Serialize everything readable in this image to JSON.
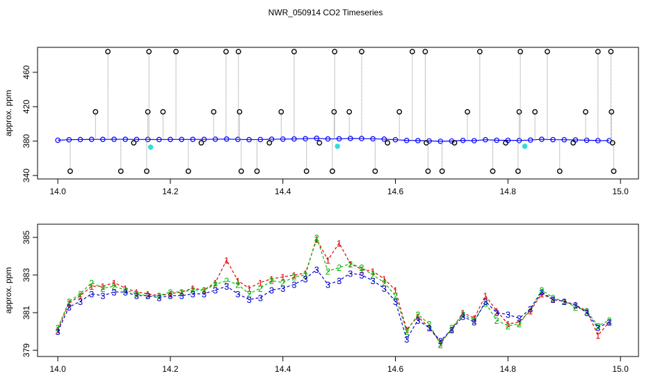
{
  "title": "NWR_050914  CO2 Timeseries",
  "chart_data": [
    {
      "type": "line",
      "y_label": "approx. ppm",
      "xlim": [
        13.964,
        15.032
      ],
      "ylim": [
        336,
        489
      ],
      "xticks": [
        {
          "value": 14,
          "label": "14.0"
        },
        14.2,
        14.4,
        14.6,
        14.8,
        {
          "value": 15,
          "label": "15.0"
        }
      ],
      "yticks": [
        340,
        380,
        420,
        460
      ],
      "x": [
        14.0,
        14.02,
        14.04,
        14.06,
        14.08,
        14.1,
        14.12,
        14.14,
        14.16,
        14.18,
        14.2,
        14.22,
        14.24,
        14.26,
        14.28,
        14.3,
        14.32,
        14.34,
        14.36,
        14.38,
        14.4,
        14.42,
        14.44,
        14.46,
        14.48,
        14.5,
        14.52,
        14.54,
        14.56,
        14.58,
        14.6,
        14.62,
        14.64,
        14.66,
        14.68,
        14.7,
        14.72,
        14.74,
        14.76,
        14.78,
        14.8,
        14.82,
        14.84,
        14.86,
        14.88,
        14.9,
        14.92,
        14.94,
        14.96,
        14.98
      ],
      "series": [
        {
          "style": "points-line",
          "color": "#0000ff",
          "values": [
            381,
            381.6,
            381.8,
            382,
            382,
            382.1,
            382.1,
            381.9,
            381.9,
            381.8,
            381.9,
            381.9,
            382,
            382,
            382.2,
            382.4,
            382,
            381.7,
            381.8,
            382.2,
            382.3,
            382.5,
            382.8,
            383.3,
            382.5,
            382.7,
            383.1,
            383,
            382.7,
            382.3,
            381.6,
            380.8,
            380.6,
            380.2,
            379.8,
            380.1,
            380.8,
            380.5,
            381.6,
            381,
            380.9,
            380.7,
            381.2,
            382.1,
            381.7,
            381.6,
            381.4,
            381,
            380.6,
            380.5
          ]
        },
        {
          "style": "spike",
          "color": "#000000",
          "x": [
            14.022,
            14.067,
            14.089,
            14.112,
            14.135,
            14.158,
            14.16,
            14.162,
            14.187,
            14.21,
            14.232,
            14.255,
            14.277,
            14.299,
            14.321,
            14.323,
            14.326,
            14.354,
            14.376,
            14.397,
            14.42,
            14.442,
            14.465,
            14.488,
            14.491,
            14.492,
            14.518,
            14.54,
            14.564,
            14.586,
            14.607,
            14.63,
            14.653,
            14.655,
            14.658,
            14.683,
            14.705,
            14.728,
            14.75,
            14.773,
            14.796,
            14.818,
            14.82,
            14.822,
            14.848,
            14.87,
            14.892,
            14.916,
            14.938,
            14.96,
            14.983,
            14.984,
            14.986,
            14.988
          ],
          "values": [
            345,
            414,
            484,
            345,
            378,
            345,
            414,
            484,
            414,
            484,
            345,
            378,
            414,
            484,
            484,
            414,
            345,
            345,
            378,
            414,
            484,
            345,
            378,
            345,
            414,
            484,
            414,
            484,
            345,
            378,
            414,
            484,
            484,
            378,
            345,
            345,
            378,
            414,
            484,
            345,
            378,
            345,
            414,
            484,
            414,
            484,
            345,
            378,
            414,
            484,
            484,
            414,
            378,
            345
          ]
        },
        {
          "style": "points",
          "color": "#33dddd",
          "x": [
            14.165,
            14.497,
            14.83
          ],
          "values": [
            373,
            374,
            374
          ]
        }
      ]
    },
    {
      "type": "line",
      "y_label": "approx. ppm",
      "xlim": [
        13.964,
        15.032
      ],
      "ylim": [
        378.67,
        385.7
      ],
      "xticks": [
        {
          "value": 14,
          "label": "14.0"
        },
        14.2,
        14.4,
        14.6,
        14.8,
        {
          "value": 15,
          "label": "15.0"
        }
      ],
      "yticks": [
        379,
        381,
        383,
        385
      ],
      "x": [
        14.0,
        14.02,
        14.04,
        14.06,
        14.08,
        14.1,
        14.12,
        14.14,
        14.16,
        14.18,
        14.2,
        14.22,
        14.24,
        14.26,
        14.28,
        14.3,
        14.32,
        14.34,
        14.36,
        14.38,
        14.4,
        14.42,
        14.44,
        14.46,
        14.48,
        14.5,
        14.52,
        14.54,
        14.56,
        14.58,
        14.6,
        14.62,
        14.64,
        14.66,
        14.68,
        14.7,
        14.72,
        14.74,
        14.76,
        14.78,
        14.8,
        14.82,
        14.84,
        14.86,
        14.88,
        14.9,
        14.92,
        14.94,
        14.96,
        14.98
      ],
      "series": [
        {
          "style": "chars",
          "marker": "1",
          "color": "#dd0000",
          "values": [
            380.1,
            381.5,
            381.9,
            382.4,
            382.4,
            382.6,
            382.3,
            382.1,
            382,
            381.9,
            382,
            382.1,
            382.3,
            382.2,
            382.6,
            383.8,
            382.7,
            382.3,
            382.6,
            382.8,
            382.9,
            383,
            383.1,
            384.9,
            383.8,
            384.7,
            383.6,
            383.3,
            383.2,
            382.8,
            382.2,
            380.1,
            380.8,
            380.2,
            379.4,
            380.1,
            381,
            380.7,
            381.9,
            381.1,
            380.4,
            380.5,
            381.1,
            382,
            381.7,
            381.6,
            381.4,
            381.1,
            379.8,
            380.5
          ]
        },
        {
          "style": "chars",
          "marker": "2",
          "color": "#00bb00",
          "values": [
            380.2,
            381.6,
            382,
            382.6,
            382.3,
            382.4,
            382.2,
            382,
            381.9,
            381.9,
            382.1,
            382.1,
            382.2,
            382.2,
            382.5,
            382.7,
            382.5,
            382,
            382.3,
            382.7,
            382.6,
            382.9,
            383,
            385,
            383.2,
            383.4,
            383.6,
            383.4,
            383,
            382.6,
            381.9,
            380,
            380.9,
            380.4,
            379.3,
            380.2,
            380.9,
            380.6,
            381.5,
            380.6,
            380.3,
            380.4,
            381.2,
            382.2,
            381.8,
            381.6,
            381.3,
            381.1,
            380.3,
            380.6
          ]
        },
        {
          "style": "chars",
          "marker": "3",
          "color": "#0000cc",
          "values": [
            380,
            381.3,
            381.6,
            382,
            381.9,
            382.1,
            382.1,
            381.9,
            381.9,
            381.8,
            381.9,
            381.9,
            382,
            382,
            382.2,
            382.4,
            382,
            381.7,
            381.8,
            382.2,
            382.3,
            382.5,
            382.8,
            383.3,
            382.5,
            382.7,
            383.1,
            383,
            382.7,
            382.3,
            381.6,
            379.6,
            380.6,
            380.2,
            379.5,
            380.1,
            380.8,
            380.5,
            381.6,
            381,
            380.9,
            380.7,
            381.2,
            382.1,
            381.7,
            381.6,
            381.4,
            381,
            380.2,
            380.5
          ]
        }
      ]
    }
  ]
}
